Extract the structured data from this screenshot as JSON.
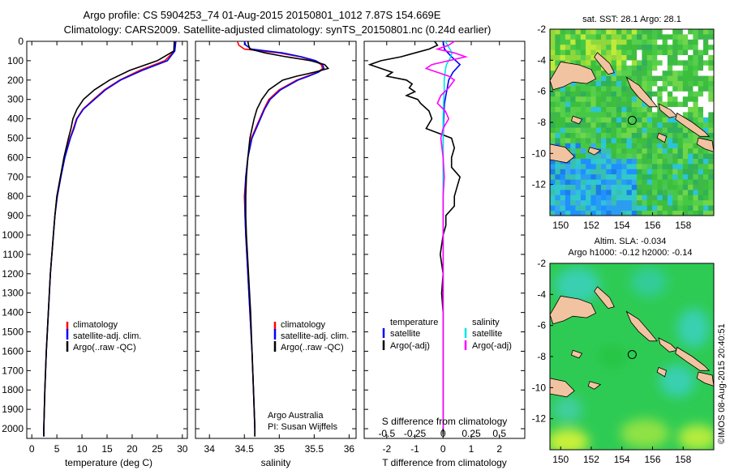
{
  "header": {
    "title_line1": "Argo profile: CS 5904253_74 01-Aug-2015 20150801_1012 7.87S 154.669E",
    "title_line2": "Climatology: CARS2009. Satellite-adjusted climatology: synTS_20150801.nc (0.24d earlier)"
  },
  "side_text": "©IMOS 08-Aug-2015 20:40:51",
  "colors": {
    "climatology": "#ff0000",
    "satellite": "#0000ff",
    "argo": "#000000",
    "sal_satellite": "#00e5e5",
    "sal_argo": "#ff00ff",
    "land": "#f2c3a1",
    "sst_low": "#1e90ff",
    "sst_high": "#3cbf3c",
    "sla_base": "#2ecb54",
    "sla_cool": "#37d0b0",
    "sla_warm": "#c9f03a"
  },
  "chart_data": [
    {
      "type": "line",
      "id": "temperature",
      "xlabel": "temperature (deg C)",
      "xlim": [
        -1,
        31
      ],
      "ylim": [
        2050,
        0
      ],
      "xticks": [
        0,
        5,
        10,
        15,
        20,
        25,
        30
      ],
      "yticks": [
        0,
        100,
        200,
        300,
        400,
        500,
        600,
        700,
        800,
        900,
        1000,
        1100,
        1200,
        1300,
        1400,
        1500,
        1600,
        1700,
        1800,
        1900,
        2000
      ],
      "legend": [
        "climatology",
        "satellite-adj. clim.",
        "Argo(..raw -QC)"
      ],
      "legend_position": "lower-center",
      "series": [
        {
          "name": "climatology",
          "depth": [
            0,
            50,
            100,
            150,
            200,
            250,
            300,
            350,
            400,
            450,
            500,
            600,
            700,
            800,
            900,
            1000,
            1200,
            1400,
            1600,
            1800,
            2000,
            2040
          ],
          "values": [
            28.6,
            28.4,
            26.5,
            21.5,
            17.5,
            14.5,
            12.3,
            10.2,
            8.9,
            8.3,
            7.6,
            6.5,
            5.7,
            5.0,
            4.6,
            4.3,
            3.7,
            3.3,
            2.9,
            2.6,
            2.4,
            2.4
          ]
        },
        {
          "name": "satellite-adj. clim.",
          "depth": [
            0,
            50,
            100,
            150,
            200,
            250,
            300,
            350,
            400,
            450,
            500,
            600,
            700,
            800,
            900,
            1000,
            1200,
            1400,
            1600,
            1800,
            2000,
            2040
          ],
          "values": [
            28.7,
            28.5,
            27.0,
            22.0,
            17.7,
            14.7,
            12.5,
            10.3,
            9.0,
            8.4,
            7.7,
            6.6,
            5.8,
            5.1,
            4.6,
            4.3,
            3.7,
            3.3,
            2.9,
            2.6,
            2.4,
            2.4
          ]
        },
        {
          "name": "Argo(..raw -QC)",
          "depth": [
            0,
            50,
            100,
            150,
            200,
            250,
            300,
            350,
            400,
            450,
            500,
            600,
            700,
            800,
            900,
            1000,
            1200,
            1400,
            1600,
            1800,
            2000,
            2040
          ],
          "values": [
            28.4,
            28.3,
            25.0,
            19.5,
            15.5,
            12.5,
            10.3,
            9.0,
            8.2,
            7.8,
            7.3,
            6.4,
            5.7,
            5.0,
            4.6,
            4.3,
            3.7,
            3.3,
            2.9,
            2.6,
            2.4,
            2.4
          ]
        }
      ]
    },
    {
      "type": "line",
      "id": "salinity",
      "xlabel": "salinity",
      "xlim": [
        33.8,
        36.1
      ],
      "ylim": [
        2050,
        0
      ],
      "xticks": [
        34,
        34.5,
        35,
        35.5,
        36
      ],
      "legend": [
        "climatology",
        "satellite-adj. clim.",
        "Argo(..raw -QC)"
      ],
      "legend_position": "lower-center",
      "annotation": [
        "Argo Australia",
        "PI: Susan Wijffels"
      ],
      "series": [
        {
          "name": "climatology",
          "depth": [
            0,
            20,
            40,
            60,
            80,
            100,
            120,
            140,
            160,
            180,
            200,
            250,
            300,
            350,
            400,
            500,
            600,
            700,
            800,
            900,
            1000,
            1200,
            1400,
            1600,
            1800,
            2000,
            2040
          ],
          "values": [
            34.4,
            34.42,
            34.5,
            35.0,
            35.3,
            35.5,
            35.6,
            35.62,
            35.55,
            35.4,
            35.25,
            35.0,
            34.85,
            34.78,
            34.72,
            34.6,
            34.55,
            34.52,
            34.5,
            34.51,
            34.52,
            34.55,
            34.58,
            34.61,
            34.63,
            34.65,
            34.65
          ]
        },
        {
          "name": "satellite-adj. clim.",
          "depth": [
            0,
            20,
            40,
            60,
            80,
            100,
            120,
            140,
            160,
            180,
            200,
            250,
            300,
            350,
            400,
            500,
            600,
            700,
            800,
            900,
            1000,
            1200,
            1400,
            1600,
            1800,
            2000,
            2040
          ],
          "values": [
            34.5,
            34.52,
            34.6,
            35.05,
            35.32,
            35.52,
            35.62,
            35.64,
            35.56,
            35.42,
            35.27,
            35.02,
            34.87,
            34.79,
            34.73,
            34.61,
            34.55,
            34.52,
            34.51,
            34.51,
            34.52,
            34.55,
            34.58,
            34.61,
            34.63,
            34.65,
            34.65
          ]
        },
        {
          "name": "Argo(..raw -QC)",
          "depth": [
            0,
            20,
            40,
            60,
            80,
            100,
            120,
            140,
            160,
            180,
            200,
            250,
            300,
            350,
            400,
            500,
            600,
            700,
            800,
            900,
            1000,
            1200,
            1400,
            1600,
            1800,
            2000,
            2040
          ],
          "values": [
            34.55,
            34.56,
            34.58,
            34.8,
            35.1,
            35.45,
            35.65,
            35.7,
            35.5,
            35.25,
            35.05,
            34.85,
            34.75,
            34.68,
            34.64,
            34.58,
            34.55,
            34.53,
            34.52,
            34.52,
            34.53,
            34.56,
            34.59,
            34.61,
            34.63,
            34.65,
            34.65
          ]
        }
      ]
    },
    {
      "type": "line",
      "id": "difference",
      "xlabel": "T difference from climatology",
      "x2label": "S difference from climatology",
      "xlim": [
        -2.8,
        2.9
      ],
      "x2lim": [
        -0.7,
        0.725
      ],
      "ylim": [
        2050,
        0
      ],
      "xticks": [
        -2,
        -1,
        0,
        1,
        2
      ],
      "x2ticks": [
        -0.5,
        -0.25,
        0,
        0.25,
        0.5
      ],
      "legend": [
        {
          "header": "temperature",
          "entries": [
            "satellite",
            "Argo(-adj)"
          ]
        },
        {
          "header": "salinity",
          "entries": [
            "satellite",
            "Argo(-adj)"
          ]
        }
      ],
      "legend_position": "lower-center",
      "series": [
        {
          "name": "T satellite",
          "axis": "T",
          "depth": [
            0,
            40,
            80,
            120,
            160,
            200,
            240,
            280,
            320,
            400,
            500,
            600,
            800,
            1000,
            1500,
            2000
          ],
          "values": [
            0.0,
            0.05,
            0.3,
            0.6,
            0.35,
            0.2,
            0.15,
            0.1,
            0.05,
            0.02,
            0.0,
            0.0,
            0.0,
            0.0,
            0.0,
            0.0
          ]
        },
        {
          "name": "T Argo(-adj)",
          "axis": "T",
          "depth": [
            0,
            20,
            40,
            60,
            80,
            100,
            120,
            140,
            160,
            180,
            200,
            220,
            240,
            260,
            280,
            300,
            320,
            360,
            400,
            450,
            500,
            550,
            600,
            650,
            700,
            750,
            800,
            850,
            900,
            950,
            1000,
            1100,
            1200,
            1300,
            1400,
            1500,
            1600,
            1700,
            1800,
            1900,
            2000,
            2030
          ],
          "values": [
            -0.3,
            -0.2,
            -0.5,
            -1.0,
            -1.5,
            -2.2,
            -2.6,
            -2.2,
            -1.8,
            -2.0,
            -1.3,
            -1.1,
            -1.2,
            -1.0,
            -1.3,
            -0.9,
            -0.8,
            -0.5,
            -0.4,
            -0.6,
            0.3,
            0.4,
            0.3,
            0.3,
            0.6,
            0.5,
            0.4,
            0.4,
            0.1,
            0.1,
            0.0,
            -0.1,
            0.0,
            -0.05,
            0.0,
            0.0,
            0.0,
            0.0,
            0.0,
            0.0,
            0.0,
            0.0
          ]
        },
        {
          "name": "S satellite",
          "axis": "S",
          "depth": [
            0,
            30,
            60,
            90,
            120,
            150,
            200,
            250,
            300,
            400,
            600,
            800,
            1000,
            1500,
            2000
          ],
          "values": [
            0.02,
            0.05,
            0.08,
            0.06,
            0.03,
            0.02,
            0.01,
            0.01,
            0.005,
            0.0,
            0.0,
            0.0,
            0.0,
            0.0,
            0.0
          ]
        },
        {
          "name": "S Argo(-adj)",
          "axis": "S",
          "depth": [
            0,
            20,
            40,
            60,
            80,
            100,
            120,
            140,
            160,
            180,
            200,
            240,
            280,
            320,
            360,
            400,
            450,
            500,
            600,
            700,
            800,
            1000,
            1200,
            1500,
            1800,
            2000
          ],
          "values": [
            0.1,
            0.05,
            -0.05,
            0.1,
            0.2,
            0.05,
            -0.1,
            -0.15,
            -0.05,
            0.05,
            0.1,
            0.05,
            -0.02,
            -0.05,
            0.02,
            0.05,
            0.0,
            -0.02,
            0.0,
            0.01,
            0.0,
            0.0,
            0.0,
            0.0,
            0.0,
            0.0
          ]
        }
      ]
    },
    {
      "type": "heatmap",
      "id": "sst_map",
      "title": "sat. SST: 28.1  Argo: 28.1",
      "xlim": [
        149.3,
        160
      ],
      "ylim": [
        -14,
        -2
      ],
      "xticks": [
        150,
        152,
        154,
        156,
        158
      ],
      "yticks": [
        -2,
        -4,
        -6,
        -8,
        -10,
        -12
      ],
      "marker": {
        "lon": 154.669,
        "lat": -7.87
      }
    },
    {
      "type": "heatmap",
      "id": "sla_map",
      "title_line1": "Altim. SLA: -0.034",
      "title_line2": "Argo h1000: -0.12 h2000: -0.14",
      "xlim": [
        149.3,
        160
      ],
      "ylim": [
        -14,
        -2
      ],
      "xticks": [
        150,
        152,
        154,
        156,
        158
      ],
      "yticks": [
        -2,
        -4,
        -6,
        -8,
        -10,
        -12
      ],
      "marker": {
        "lon": 154.669,
        "lat": -7.87
      }
    }
  ]
}
